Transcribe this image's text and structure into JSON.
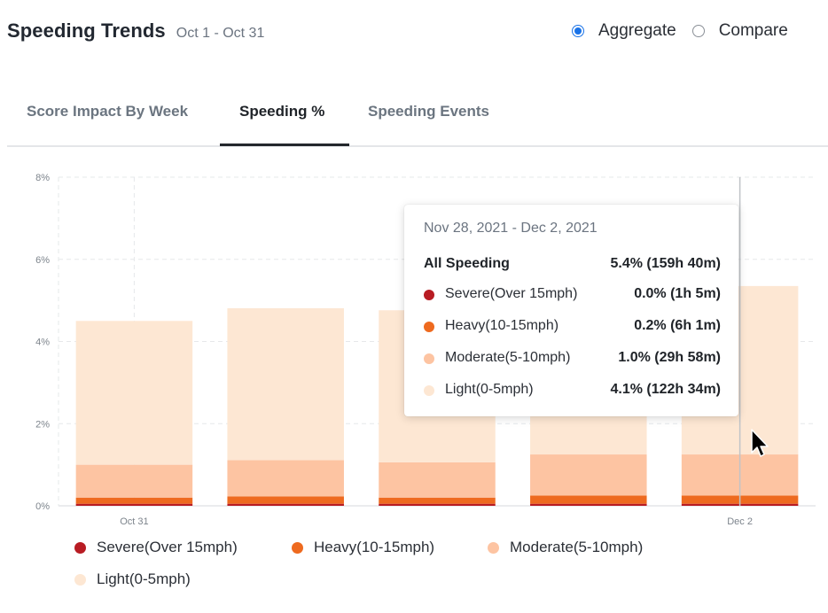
{
  "header": {
    "title": "Speeding Trends",
    "date_range": "Oct 1 - Oct 31"
  },
  "mode": {
    "options": [
      "Aggregate",
      "Compare"
    ],
    "selected": "Aggregate"
  },
  "tabs": [
    {
      "label": "Score Impact By Week",
      "active": false
    },
    {
      "label": "Speeding %",
      "active": true
    },
    {
      "label": "Speeding Events",
      "active": false
    }
  ],
  "colors": {
    "severe": "#b81c23",
    "heavy": "#ee6a1f",
    "moderate": "#fdc4a2",
    "light": "#fde7d3"
  },
  "chart_data": {
    "type": "bar",
    "stacked": true,
    "x_tick_labels": [
      "Oct 31",
      "",
      "",
      "",
      "Dec 2"
    ],
    "y_ticks": [
      "0%",
      "2%",
      "4%",
      "6%",
      "8%"
    ],
    "ylim": [
      0,
      8
    ],
    "series": [
      {
        "name": "Severe(Over 15mph)",
        "values": [
          0.05,
          0.05,
          0.05,
          0.05,
          0.05
        ]
      },
      {
        "name": "Heavy(10-15mph)",
        "values": [
          0.15,
          0.18,
          0.15,
          0.2,
          0.2
        ]
      },
      {
        "name": "Moderate(5-10mph)",
        "values": [
          0.8,
          0.88,
          0.86,
          1.0,
          1.0
        ]
      },
      {
        "name": "Light(0-5mph)",
        "values": [
          3.5,
          3.7,
          3.7,
          3.7,
          4.1
        ]
      }
    ],
    "legend": {
      "position": "bottom"
    },
    "grid": true
  },
  "tooltip": {
    "date": "Nov 28, 2021 - Dec 2, 2021",
    "rows": [
      {
        "label": "All Speeding",
        "value": "5.4% (159h 40m)",
        "color": ""
      },
      {
        "label": "Severe(Over 15mph)",
        "value": "0.0% (1h 5m)",
        "color": "#b81c23"
      },
      {
        "label": "Heavy(10-15mph)",
        "value": "0.2% (6h 1m)",
        "color": "#ee6a1f"
      },
      {
        "label": "Moderate(5-10mph)",
        "value": "1.0% (29h 58m)",
        "color": "#fdc4a2"
      },
      {
        "label": "Light(0-5mph)",
        "value": "4.1% (122h 34m)",
        "color": "#fde7d3"
      }
    ]
  },
  "legend": [
    {
      "label": "Severe(Over 15mph)",
      "color": "#b81c23"
    },
    {
      "label": "Heavy(10-15mph)",
      "color": "#ee6a1f"
    },
    {
      "label": "Moderate(5-10mph)",
      "color": "#fdc4a2"
    },
    {
      "label": "Light(0-5mph)",
      "color": "#fde7d3"
    }
  ]
}
